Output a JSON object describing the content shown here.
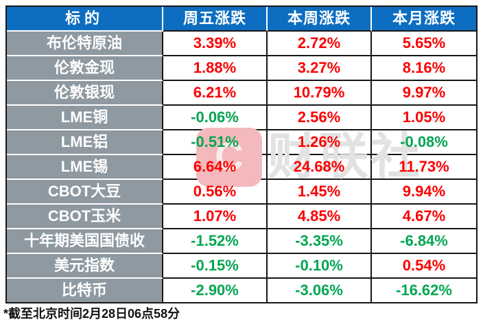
{
  "colors": {
    "up": "#fb0000",
    "down": "#00a651",
    "header_bg": "#0d6ec1",
    "label_bg": "#8e99a2",
    "border": "#161616"
  },
  "table": {
    "columns": [
      "标的",
      "周五涨跌",
      "本周涨跌",
      "本月涨跌"
    ],
    "rows": [
      {
        "label": "布伦特原油",
        "values": [
          {
            "text": "3.39%",
            "dir": "up"
          },
          {
            "text": "2.72%",
            "dir": "up"
          },
          {
            "text": "5.65%",
            "dir": "up"
          }
        ]
      },
      {
        "label": "伦敦金现",
        "values": [
          {
            "text": "1.88%",
            "dir": "up"
          },
          {
            "text": "3.27%",
            "dir": "up"
          },
          {
            "text": "8.16%",
            "dir": "up"
          }
        ]
      },
      {
        "label": "伦敦银现",
        "values": [
          {
            "text": "6.21%",
            "dir": "up"
          },
          {
            "text": "10.79%",
            "dir": "up"
          },
          {
            "text": "9.97%",
            "dir": "up"
          }
        ]
      },
      {
        "label": "LME铜",
        "values": [
          {
            "text": "-0.06%",
            "dir": "down"
          },
          {
            "text": "2.56%",
            "dir": "up"
          },
          {
            "text": "1.05%",
            "dir": "up"
          }
        ]
      },
      {
        "label": "LME铝",
        "values": [
          {
            "text": "-0.51%",
            "dir": "down"
          },
          {
            "text": "1.26%",
            "dir": "up"
          },
          {
            "text": "-0.08%",
            "dir": "down"
          }
        ]
      },
      {
        "label": "LME锡",
        "values": [
          {
            "text": "6.64%",
            "dir": "up"
          },
          {
            "text": "24.68%",
            "dir": "up"
          },
          {
            "text": "11.73%",
            "dir": "up"
          }
        ]
      },
      {
        "label": "CBOT大豆",
        "values": [
          {
            "text": "0.56%",
            "dir": "up"
          },
          {
            "text": "1.45%",
            "dir": "up"
          },
          {
            "text": "9.94%",
            "dir": "up"
          }
        ]
      },
      {
        "label": "CBOT玉米",
        "values": [
          {
            "text": "1.07%",
            "dir": "up"
          },
          {
            "text": "4.85%",
            "dir": "up"
          },
          {
            "text": "4.67%",
            "dir": "up"
          }
        ]
      },
      {
        "label": "十年期美国国债收",
        "values": [
          {
            "text": "-1.52%",
            "dir": "down"
          },
          {
            "text": "-3.35%",
            "dir": "down"
          },
          {
            "text": "-6.84%",
            "dir": "down"
          }
        ]
      },
      {
        "label": "美元指数",
        "values": [
          {
            "text": "-0.15%",
            "dir": "down"
          },
          {
            "text": "-0.10%",
            "dir": "down"
          },
          {
            "text": "0.54%",
            "dir": "up"
          }
        ]
      },
      {
        "label": "比特币",
        "values": [
          {
            "text": "-2.90%",
            "dir": "down"
          },
          {
            "text": "-3.06%",
            "dir": "down"
          },
          {
            "text": "-16.62%",
            "dir": "down"
          }
        ]
      }
    ]
  },
  "watermark": {
    "badge_glyph": "C",
    "text": "财联社"
  },
  "footnote": "*截至北京时间2月28日06点58分",
  "chart_data": {
    "type": "table",
    "title": "",
    "columns": [
      "标的",
      "周五涨跌",
      "本周涨跌",
      "本月涨跌"
    ],
    "rows": [
      [
        "布伦特原油",
        "3.39%",
        "2.72%",
        "5.65%"
      ],
      [
        "伦敦金现",
        "1.88%",
        "3.27%",
        "8.16%"
      ],
      [
        "伦敦银现",
        "6.21%",
        "10.79%",
        "9.97%"
      ],
      [
        "LME铜",
        "-0.06%",
        "2.56%",
        "1.05%"
      ],
      [
        "LME铝",
        "-0.51%",
        "1.26%",
        "-0.08%"
      ],
      [
        "LME锡",
        "6.64%",
        "24.68%",
        "11.73%"
      ],
      [
        "CBOT大豆",
        "0.56%",
        "1.45%",
        "9.94%"
      ],
      [
        "CBOT玉米",
        "1.07%",
        "4.85%",
        "4.67%"
      ],
      [
        "十年期美国国债收",
        "-1.52%",
        "-3.35%",
        "-6.84%"
      ],
      [
        "美元指数",
        "-0.15%",
        "-0.10%",
        "0.54%"
      ],
      [
        "比特币",
        "-2.90%",
        "-3.06%",
        "-16.62%"
      ]
    ],
    "value_color_rule": "positive values red (up), negative values green (down)",
    "footnote": "*截至北京时间2月28日06点58分"
  }
}
